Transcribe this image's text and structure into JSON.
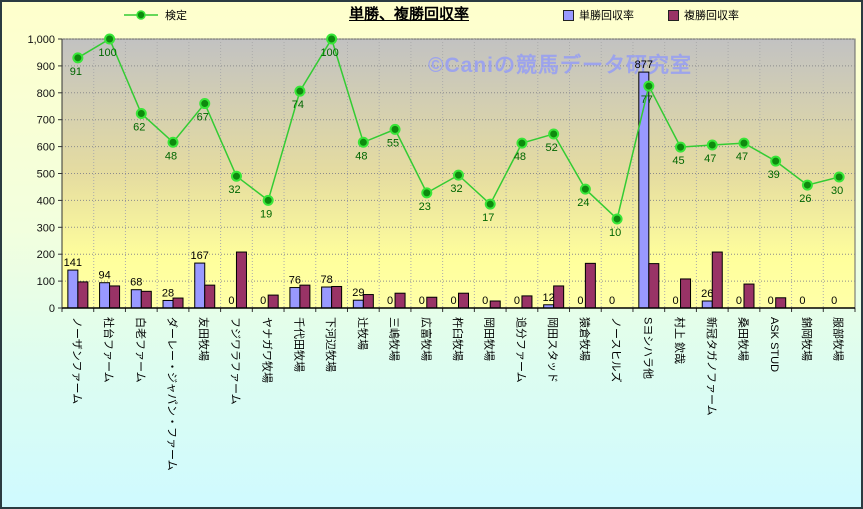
{
  "title": "単勝、複勝回収率",
  "watermark": "©Caniの競馬データ研究室",
  "legend": {
    "line_label": "検定",
    "tansho_label": "単勝回収率",
    "fukusho_label": "複勝回収率"
  },
  "colors": {
    "tansho_bar": "#9999FF",
    "fukusho_bar": "#993366",
    "line": "#33CC33",
    "marker_fill": "#0E8A0E",
    "marker_ring": "#39E639",
    "line_label_text": "#006600",
    "bar_label_text": "#000000",
    "plot_bg_top": "#C2C2C2",
    "plot_bg_bottom": "#FFFF99",
    "page_bg_top": "#FFFFCC",
    "page_bg_bottom": "#CCFFFF",
    "watermark_text": "#969EF2"
  },
  "chart_data": {
    "type": "bar+line combo",
    "title": "単勝、複勝回収率",
    "xlabel": "",
    "ylabel": "",
    "ylim": [
      0,
      1000
    ],
    "ytick_step": 100,
    "ytick_labels": [
      "1,000",
      "900",
      "800",
      "700",
      "600",
      "500",
      "400",
      "300",
      "200",
      "100",
      "0"
    ],
    "grid": true,
    "legend_position": "top",
    "categories": [
      "ノーザンファーム",
      "社台ファーム",
      "白老ファーム",
      "ダーレー・ジャパン・ファーム",
      "友田牧場",
      "フジワラファーム",
      "ヤナガワ牧場",
      "千代田牧場",
      "下河辺牧場",
      "辻牧場",
      "三嶋牧場",
      "広富牧場",
      "杵臼牧場",
      "岡田牧場",
      "追分ファーム",
      "岡田スタッド",
      "猿倉牧場",
      "ノースヒルズ",
      "Sヨシハラ他",
      "村上 欽哉",
      "新冠タガノファーム",
      "桑田牧場",
      "ASK STUD",
      "錦岡牧場",
      "服部牧場"
    ],
    "series": [
      {
        "name": "単勝回収率",
        "type": "bar",
        "color": "#9999FF",
        "data_labels_shown": true,
        "values": [
          141,
          94,
          68,
          28,
          167,
          0,
          0,
          76,
          78,
          29,
          0,
          0,
          0,
          0,
          0,
          12,
          0,
          0,
          877,
          0,
          26,
          0,
          0,
          0,
          0
        ]
      },
      {
        "name": "複勝回収率",
        "type": "bar",
        "color": "#993366",
        "data_labels_shown": false,
        "values": [
          97,
          82,
          62,
          37,
          85,
          208,
          48,
          85,
          80,
          50,
          55,
          40,
          55,
          26,
          45,
          82,
          166,
          0,
          165,
          108,
          208,
          89,
          38,
          0,
          0
        ]
      },
      {
        "name": "検定",
        "type": "line",
        "color": "#33CC33",
        "data_labels_shown": true,
        "point_labels": [
          91,
          100,
          62,
          48,
          67,
          32,
          19,
          74,
          100,
          48,
          55,
          23,
          32,
          17,
          48,
          52,
          24,
          10,
          77,
          45,
          47,
          47,
          39,
          26,
          30
        ],
        "plotted_on_left_axis": [
          930,
          1000,
          723,
          616,
          760,
          490,
          400,
          806,
          1000,
          616,
          664,
          428,
          494,
          386,
          613,
          647,
          442,
          331,
          825,
          598,
          606,
          613,
          546,
          457,
          487
        ],
        "note": "point_labels are the displayed 検定 values; markers are drawn at plotted_on_left_axis positions of the 0-1000 axis"
      }
    ]
  }
}
